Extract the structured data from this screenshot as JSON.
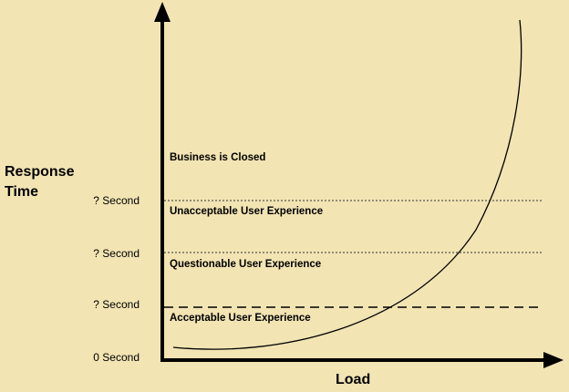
{
  "y_axis_label": "Response Time",
  "x_axis_label": "Load",
  "tick_labels": [
    "? Second",
    "? Second",
    "? Second",
    "0 Second"
  ],
  "zones": [
    "Business is Closed",
    "Unacceptable User Experience",
    "Questionable User Experience",
    "Acceptable User Experience"
  ]
}
